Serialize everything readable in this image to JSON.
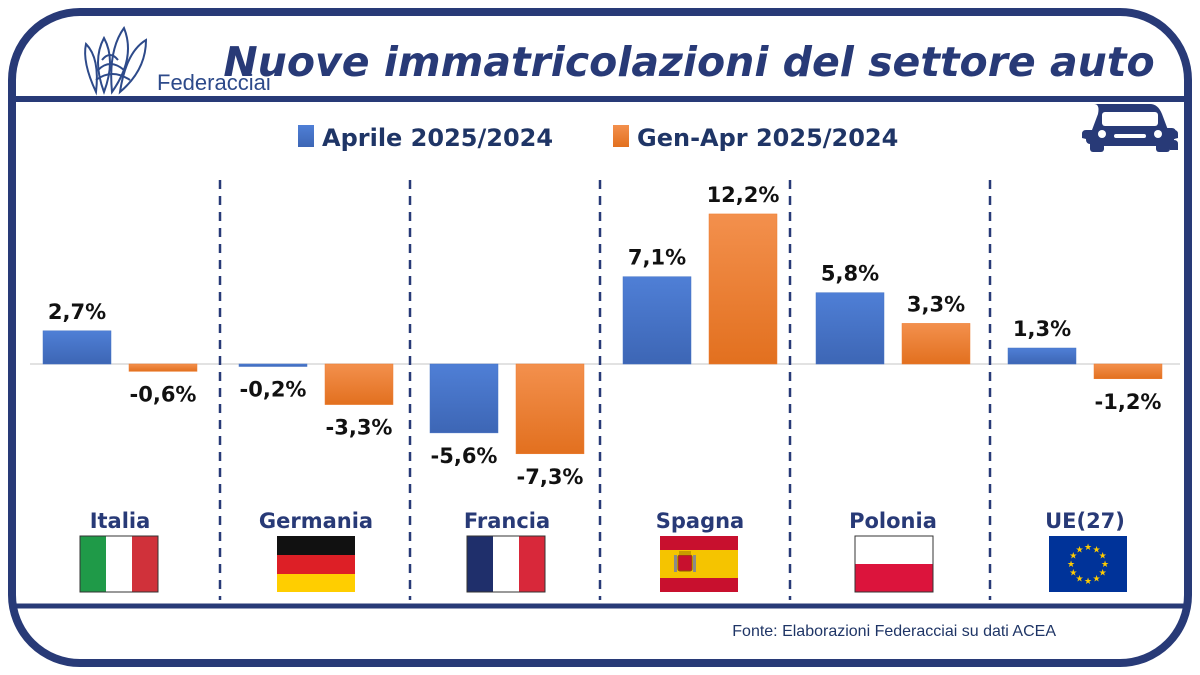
{
  "brand": {
    "name": "Federacciai"
  },
  "title": "Nuove immatricolazioni del settore auto",
  "car_icon": "car-icon",
  "source": "Fonte: Elaborazioni Federacciai su dati ACEA",
  "colors": {
    "frame": "#283a77",
    "series_blue": "#4472c4",
    "series_orange": "#ed7d31",
    "text": "#111111"
  },
  "chart_data": {
    "type": "bar",
    "categories": [
      "Italia",
      "Germania",
      "Francia",
      "Spagna",
      "Polonia",
      "UE(27)"
    ],
    "series": [
      {
        "name": "Aprile 2025/2024",
        "values": [
          2.7,
          -0.2,
          -5.6,
          7.1,
          5.8,
          1.3
        ],
        "labels": [
          "2,7%",
          "-0,2%",
          "-5,6%",
          "7,1%",
          "5,8%",
          "1,3%"
        ]
      },
      {
        "name": "Gen-Apr 2025/2024",
        "values": [
          -0.6,
          -3.3,
          -7.3,
          12.2,
          3.3,
          -1.2
        ],
        "labels": [
          "-0,6%",
          "-3,3%",
          "-7,3%",
          "12,2%",
          "3,3%",
          "-1,2%"
        ]
      }
    ],
    "unit": "%",
    "legend": "top-center",
    "grid": false,
    "flags": [
      "flag-italy",
      "flag-germany",
      "flag-france",
      "flag-spain",
      "flag-poland",
      "flag-eu"
    ]
  }
}
